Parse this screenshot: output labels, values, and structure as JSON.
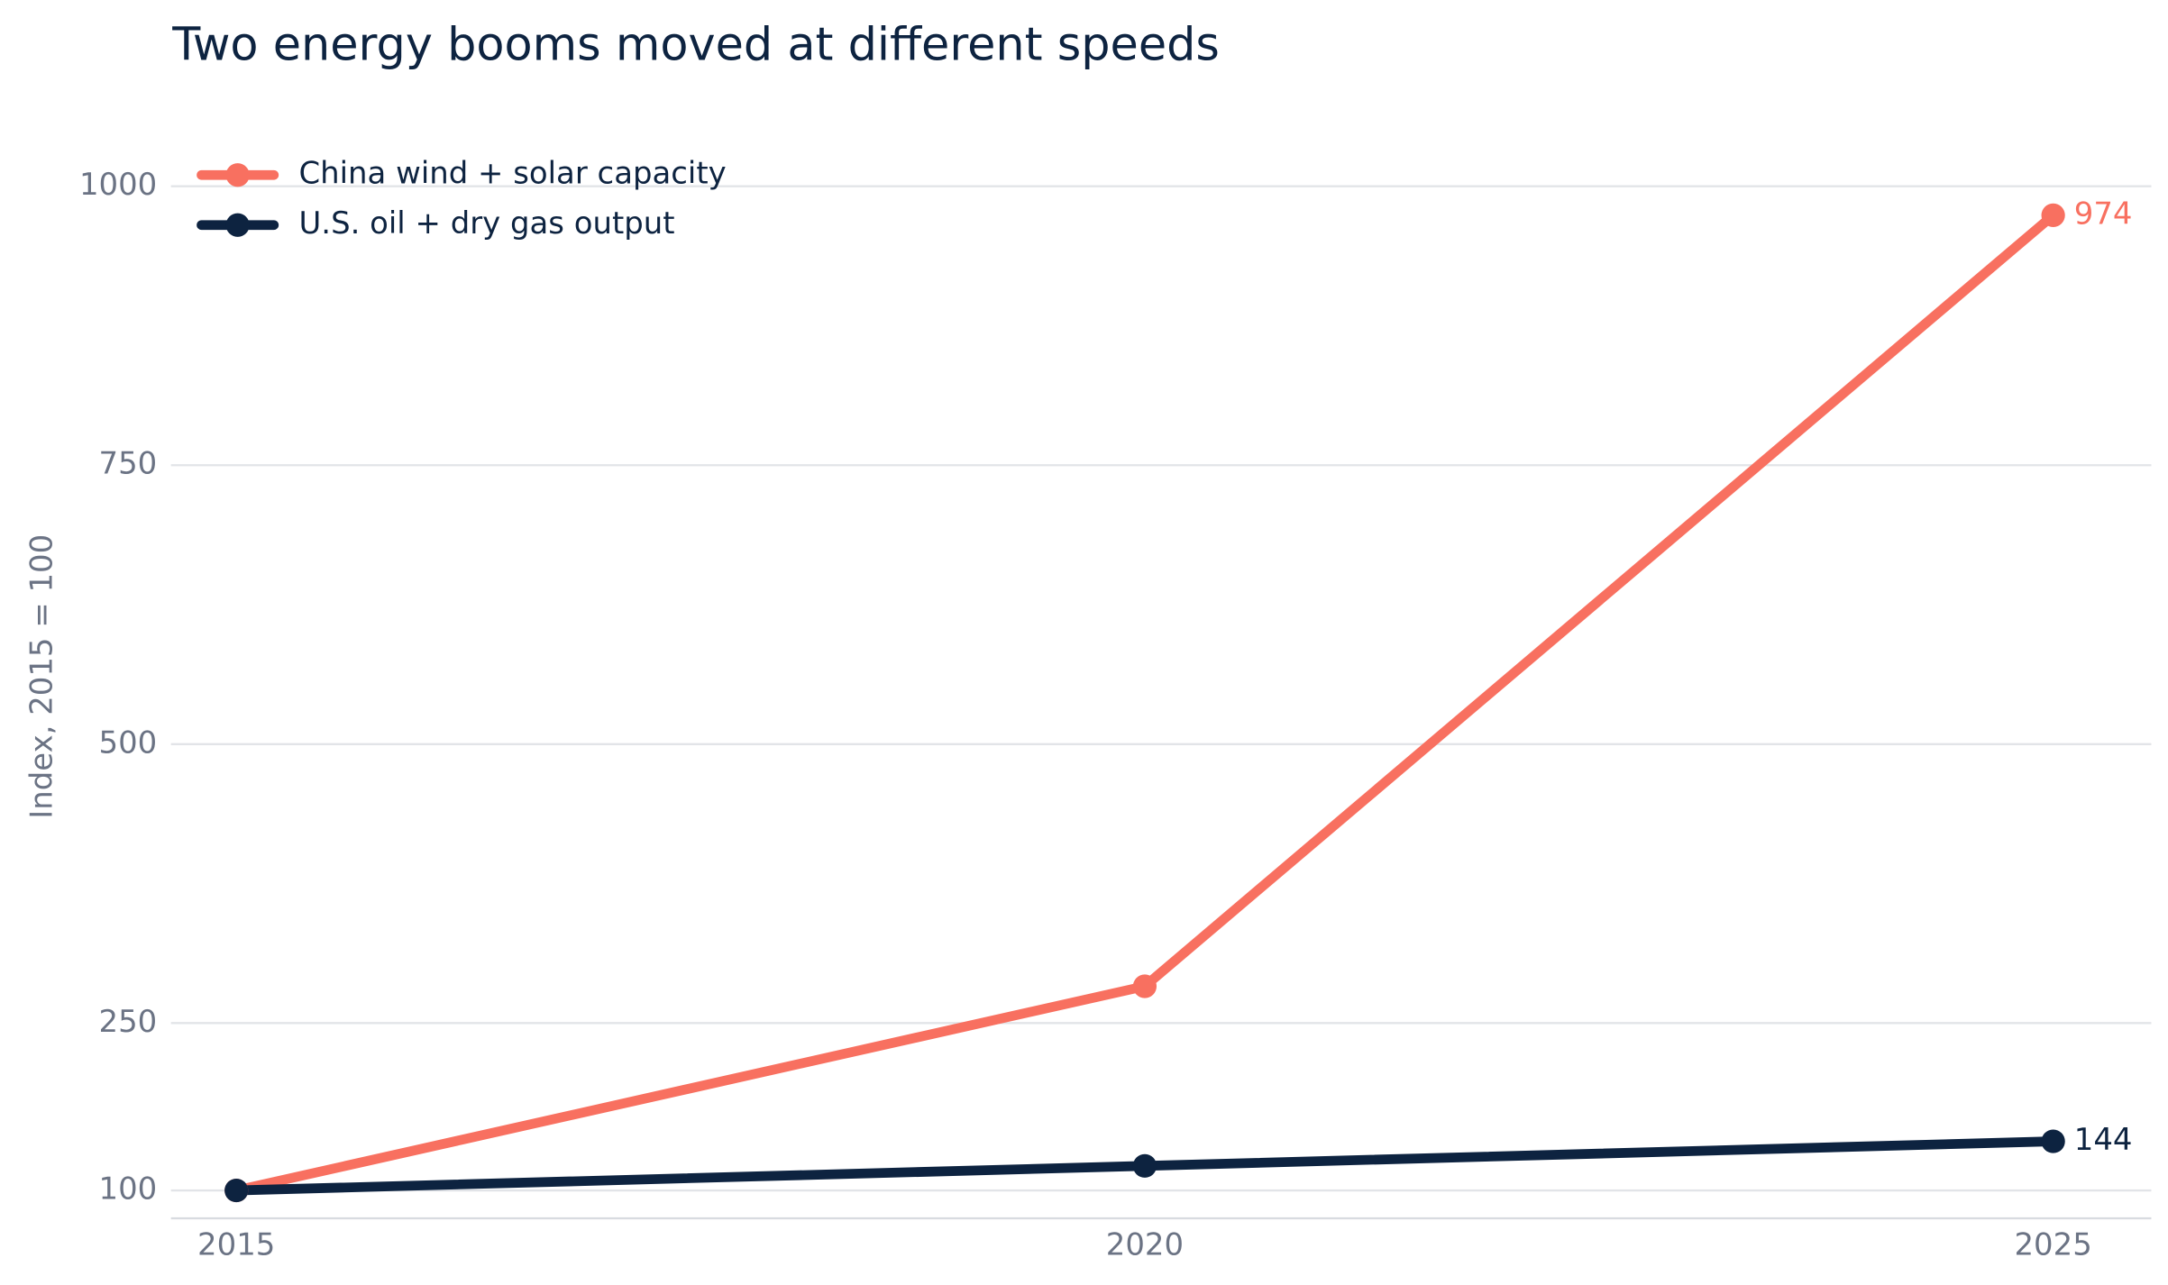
{
  "chart_data": {
    "type": "line",
    "title": "Two energy booms moved at different speeds",
    "y_label": "Index, 2015 = 100",
    "x": [
      2015,
      2020,
      2025
    ],
    "series": [
      {
        "name": "China wind + solar capacity",
        "color": "#f87060",
        "values": [
          100,
          283,
          974
        ]
      },
      {
        "name": "U.S. oil + dry gas output",
        "color": "#0d2340",
        "values": [
          100,
          122,
          144
        ]
      }
    ],
    "xlim": [
      2014.64,
      2025.54
    ],
    "xticks": [
      2015,
      2020,
      2025
    ],
    "ylim": [
      75,
      1025
    ],
    "yticks": [
      100,
      250,
      500,
      750,
      1000
    ],
    "grid": true,
    "legend": "top-left"
  }
}
